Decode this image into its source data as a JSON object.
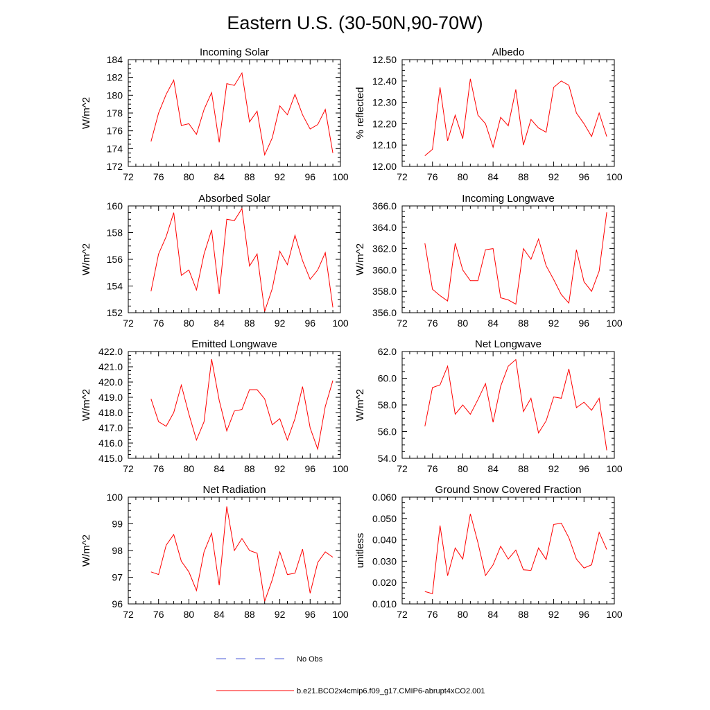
{
  "title": "Eastern U.S. (30-50N,90-70W)",
  "colors": {
    "model": "#ff0000",
    "obs": "#4a5ad8",
    "axis": "#000000"
  },
  "legend": {
    "obs_label": "No Obs",
    "model_label": "b.e21.BCO2x4cmip6.f09_g17.CMIP6-abrupt4xCO2.001"
  },
  "chart_data": [
    {
      "type": "line",
      "title": "Incoming Solar",
      "ylabel": "W/m^2",
      "xlim": [
        72,
        100
      ],
      "ylim": [
        172,
        184
      ],
      "yticks": [
        172,
        174,
        176,
        178,
        180,
        182,
        184
      ],
      "ytick_labels": [
        "172",
        "174",
        "176",
        "178",
        "180",
        "182",
        "184"
      ],
      "xticks": [
        72,
        76,
        80,
        84,
        88,
        92,
        96,
        100
      ],
      "series": [
        {
          "name": "b.e21.BCO2x4cmip6.f09_g17.CMIP6-abrupt4xCO2.001",
          "x": [
            75,
            76,
            77,
            78,
            79,
            80,
            81,
            82,
            83,
            84,
            85,
            86,
            87,
            88,
            89,
            90,
            91,
            92,
            93,
            94,
            95,
            96,
            97,
            98,
            99
          ],
          "values": [
            174.8,
            178.0,
            180.1,
            181.7,
            176.6,
            176.8,
            175.6,
            178.4,
            180.3,
            174.7,
            181.3,
            181.1,
            182.5,
            177.0,
            178.2,
            173.3,
            175.2,
            178.8,
            177.8,
            180.1,
            177.8,
            176.2,
            176.7,
            178.4,
            173.5
          ]
        }
      ]
    },
    {
      "type": "line",
      "title": "Albedo",
      "ylabel": "% reflected",
      "xlim": [
        72,
        100
      ],
      "ylim": [
        12.0,
        12.5
      ],
      "yticks": [
        12.0,
        12.1,
        12.2,
        12.3,
        12.4,
        12.5
      ],
      "ytick_labels": [
        "12.00",
        "12.10",
        "12.20",
        "12.30",
        "12.40",
        "12.50"
      ],
      "xticks": [
        72,
        76,
        80,
        84,
        88,
        92,
        96,
        100
      ],
      "series": [
        {
          "name": "b.e21.BCO2x4cmip6.f09_g17.CMIP6-abrupt4xCO2.001",
          "x": [
            75,
            76,
            77,
            78,
            79,
            80,
            81,
            82,
            83,
            84,
            85,
            86,
            87,
            88,
            89,
            90,
            91,
            92,
            93,
            94,
            95,
            96,
            97,
            98,
            99
          ],
          "values": [
            12.05,
            12.08,
            12.37,
            12.12,
            12.24,
            12.13,
            12.41,
            12.24,
            12.2,
            12.09,
            12.23,
            12.19,
            12.36,
            12.1,
            12.22,
            12.18,
            12.16,
            12.37,
            12.4,
            12.38,
            12.25,
            12.2,
            12.14,
            12.25,
            12.14
          ]
        }
      ]
    },
    {
      "type": "line",
      "title": "Absorbed Solar",
      "ylabel": "W/m^2",
      "xlim": [
        72,
        100
      ],
      "ylim": [
        152,
        160
      ],
      "yticks": [
        152,
        154,
        156,
        158,
        160
      ],
      "ytick_labels": [
        "152",
        "154",
        "156",
        "158",
        "160"
      ],
      "xticks": [
        72,
        76,
        80,
        84,
        88,
        92,
        96,
        100
      ],
      "series": [
        {
          "name": "b.e21.BCO2x4cmip6.f09_g17.CMIP6-abrupt4xCO2.001",
          "x": [
            75,
            76,
            77,
            78,
            79,
            80,
            81,
            82,
            83,
            84,
            85,
            86,
            87,
            88,
            89,
            90,
            91,
            92,
            93,
            94,
            95,
            96,
            97,
            98,
            99
          ],
          "values": [
            153.6,
            156.4,
            157.7,
            159.5,
            154.8,
            155.2,
            153.7,
            156.4,
            158.2,
            153.4,
            159.0,
            158.9,
            159.8,
            155.5,
            156.4,
            152.1,
            153.8,
            156.6,
            155.6,
            157.8,
            155.9,
            154.5,
            155.2,
            156.5,
            152.4
          ]
        }
      ]
    },
    {
      "type": "line",
      "title": "Incoming Longwave",
      "ylabel": "W/m^2",
      "xlim": [
        72,
        100
      ],
      "ylim": [
        356.0,
        366.0
      ],
      "yticks": [
        356,
        358,
        360,
        362,
        364,
        366
      ],
      "ytick_labels": [
        "356.0",
        "358.0",
        "360.0",
        "362.0",
        "364.0",
        "366.0"
      ],
      "xticks": [
        72,
        76,
        80,
        84,
        88,
        92,
        96,
        100
      ],
      "series": [
        {
          "name": "b.e21.BCO2x4cmip6.f09_g17.CMIP6-abrupt4xCO2.001",
          "x": [
            75,
            76,
            77,
            78,
            79,
            80,
            81,
            82,
            83,
            84,
            85,
            86,
            87,
            88,
            89,
            90,
            91,
            92,
            93,
            94,
            95,
            96,
            97,
            98,
            99
          ],
          "values": [
            362.5,
            358.2,
            357.6,
            357.1,
            362.5,
            360.0,
            359.0,
            359.0,
            361.9,
            362.0,
            357.4,
            357.2,
            356.8,
            362.0,
            361.0,
            362.9,
            360.4,
            359.1,
            357.7,
            356.9,
            361.9,
            358.9,
            358.0,
            359.9,
            365.4
          ]
        }
      ]
    },
    {
      "type": "line",
      "title": "Emitted Longwave",
      "ylabel": "W/m^2",
      "xlim": [
        72,
        100
      ],
      "ylim": [
        415.0,
        422.0
      ],
      "yticks": [
        415,
        416,
        417,
        418,
        419,
        420,
        421,
        422
      ],
      "ytick_labels": [
        "415.0",
        "416.0",
        "417.0",
        "418.0",
        "419.0",
        "420.0",
        "421.0",
        "422.0"
      ],
      "xticks": [
        72,
        76,
        80,
        84,
        88,
        92,
        96,
        100
      ],
      "series": [
        {
          "name": "b.e21.BCO2x4cmip6.f09_g17.CMIP6-abrupt4xCO2.001",
          "x": [
            75,
            76,
            77,
            78,
            79,
            80,
            81,
            82,
            83,
            84,
            85,
            86,
            87,
            88,
            89,
            90,
            91,
            92,
            93,
            94,
            95,
            96,
            97,
            98,
            99
          ],
          "values": [
            418.9,
            417.4,
            417.1,
            418.0,
            419.8,
            417.9,
            416.2,
            417.4,
            421.5,
            418.8,
            416.8,
            418.1,
            418.2,
            419.5,
            419.5,
            418.9,
            417.2,
            417.6,
            416.2,
            417.6,
            419.7,
            417.0,
            415.6,
            418.4,
            420.1
          ]
        }
      ]
    },
    {
      "type": "line",
      "title": "Net Longwave",
      "ylabel": "W/m^2",
      "xlim": [
        72,
        100
      ],
      "ylim": [
        54.0,
        62.0
      ],
      "yticks": [
        54,
        56,
        58,
        60,
        62
      ],
      "ytick_labels": [
        "54.0",
        "56.0",
        "58.0",
        "60.0",
        "62.0"
      ],
      "xticks": [
        72,
        76,
        80,
        84,
        88,
        92,
        96,
        100
      ],
      "series": [
        {
          "name": "b.e21.BCO2x4cmip6.f09_g17.CMIP6-abrupt4xCO2.001",
          "x": [
            75,
            76,
            77,
            78,
            79,
            80,
            81,
            82,
            83,
            84,
            85,
            86,
            87,
            88,
            89,
            90,
            91,
            92,
            93,
            94,
            95,
            96,
            97,
            98,
            99
          ],
          "values": [
            56.4,
            59.3,
            59.5,
            60.9,
            57.3,
            58.0,
            57.3,
            58.4,
            59.6,
            56.7,
            59.4,
            60.9,
            61.4,
            57.5,
            58.5,
            55.9,
            56.8,
            58.6,
            58.5,
            60.7,
            57.8,
            58.2,
            57.6,
            58.5,
            54.6
          ]
        }
      ]
    },
    {
      "type": "line",
      "title": "Net Radiation",
      "ylabel": "W/m^2",
      "xlim": [
        72,
        100
      ],
      "ylim": [
        96,
        100
      ],
      "yticks": [
        96,
        97,
        98,
        99,
        100
      ],
      "ytick_labels": [
        "96",
        "97",
        "98",
        "99",
        "100"
      ],
      "xticks": [
        72,
        76,
        80,
        84,
        88,
        92,
        96,
        100
      ],
      "series": [
        {
          "name": "b.e21.BCO2x4cmip6.f09_g17.CMIP6-abrupt4xCO2.001",
          "x": [
            75,
            76,
            77,
            78,
            79,
            80,
            81,
            82,
            83,
            84,
            85,
            86,
            87,
            88,
            89,
            90,
            91,
            92,
            93,
            94,
            95,
            96,
            97,
            98,
            99
          ],
          "values": [
            97.2,
            97.1,
            98.2,
            98.6,
            97.6,
            97.2,
            96.5,
            97.95,
            98.65,
            96.7,
            99.65,
            98.0,
            98.45,
            98.0,
            97.9,
            96.1,
            96.9,
            97.95,
            97.1,
            97.15,
            98.05,
            96.4,
            97.55,
            97.95,
            97.75
          ]
        }
      ]
    },
    {
      "type": "line",
      "title": "Ground Snow Covered Fraction",
      "ylabel": "unitless",
      "xlim": [
        72,
        100
      ],
      "ylim": [
        0.01,
        0.06
      ],
      "yticks": [
        0.01,
        0.02,
        0.03,
        0.04,
        0.05,
        0.06
      ],
      "ytick_labels": [
        "0.010",
        "0.020",
        "0.030",
        "0.040",
        "0.050",
        "0.060"
      ],
      "xticks": [
        72,
        76,
        80,
        84,
        88,
        92,
        96,
        100
      ],
      "series": [
        {
          "name": "b.e21.BCO2x4cmip6.f09_g17.CMIP6-abrupt4xCO2.001",
          "x": [
            75,
            76,
            77,
            78,
            79,
            80,
            81,
            82,
            83,
            84,
            85,
            86,
            87,
            88,
            89,
            90,
            91,
            92,
            93,
            94,
            95,
            96,
            97,
            98,
            99
          ],
          "values": [
            0.0158,
            0.0148,
            0.0467,
            0.0232,
            0.0362,
            0.031,
            0.0522,
            0.0387,
            0.0233,
            0.0283,
            0.037,
            0.031,
            0.0352,
            0.026,
            0.0257,
            0.0362,
            0.0308,
            0.0472,
            0.0478,
            0.041,
            0.031,
            0.0268,
            0.0283,
            0.0435,
            0.0355
          ]
        }
      ]
    }
  ]
}
